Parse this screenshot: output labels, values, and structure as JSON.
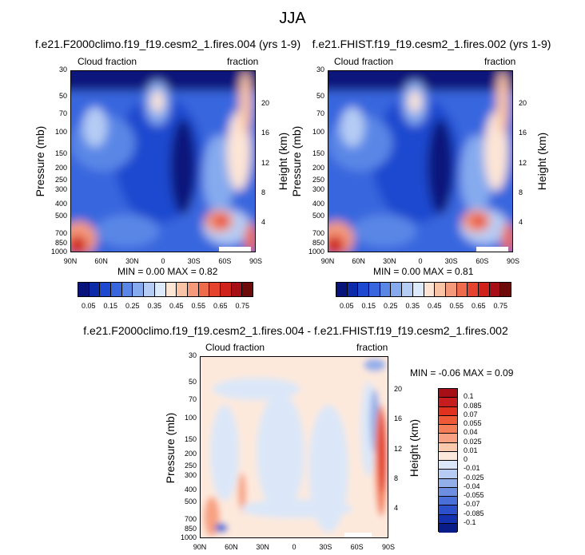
{
  "title": "JJA",
  "panels": {
    "p1": {
      "title": "f.e21.F2000climo.f19_f19.cesm2_1.fires.004 (yrs 1-9)",
      "left_label": "Cloud fraction",
      "right_label": "fraction",
      "ylabel": "Pressure (mb)",
      "y2label": "Height (km)",
      "minmax": "MIN =   0.00   MAX =   0.82"
    },
    "p2": {
      "title": "f.e21.FHIST.f19_f19.cesm2_1.fires.002 (yrs 1-9)",
      "left_label": "Cloud fraction",
      "right_label": "fraction",
      "ylabel": "Pressure (mb)",
      "y2label": "Height (km)",
      "minmax": "MIN =   0.00   MAX =   0.81"
    },
    "p3": {
      "title": "f.e21.F2000climo.f19_f19.cesm2_1.fires.004 - f.e21.FHIST.f19_f19.cesm2_1.fires.002",
      "left_label": "Cloud fraction",
      "right_label": "fraction",
      "ylabel": "Pressure (mb)",
      "y2label": "Height (km)",
      "minmax": "MIN =  -0.06   MAX =   0.09"
    }
  },
  "axes": {
    "lat_ticks": [
      "90N",
      "60N",
      "30N",
      "0",
      "30S",
      "60S",
      "90S"
    ],
    "pressure_ticks": [
      "30",
      "50",
      "70",
      "100",
      "150",
      "200",
      "250",
      "300",
      "400",
      "500",
      "700",
      "850",
      "1000"
    ],
    "pressure_values": [
      30,
      50,
      70,
      100,
      150,
      200,
      250,
      300,
      400,
      500,
      700,
      850,
      1000
    ],
    "height_ticks": [
      "20",
      "16",
      "12",
      "8",
      "4"
    ],
    "height_values": [
      20,
      16,
      12,
      8,
      4
    ]
  },
  "colorbar_main": {
    "labels": [
      "0.05",
      "0.15",
      "0.25",
      "0.35",
      "0.45",
      "0.55",
      "0.65",
      "0.75"
    ],
    "colors": [
      "#08147a",
      "#0b2ba8",
      "#1c49cf",
      "#3766de",
      "#5a87e6",
      "#86aaee",
      "#b5ccf4",
      "#ddeafb",
      "#fde5d6",
      "#f9c3a6",
      "#f49a7a",
      "#ee6c4c",
      "#e5432d",
      "#cf221b",
      "#a50f15",
      "#6d0a0a"
    ]
  },
  "colorbar_diff": {
    "labels": [
      "0.1",
      "0.085",
      "0.07",
      "0.055",
      "0.04",
      "0.025",
      "0.01",
      "0",
      "-0.01",
      "-0.025",
      "-0.04",
      "-0.055",
      "-0.07",
      "-0.085",
      "-0.1"
    ],
    "colors": [
      "#a50f15",
      "#c81d1e",
      "#e0321f",
      "#ee5a35",
      "#f47e58",
      "#f8a283",
      "#fbc9ac",
      "#fde9dc",
      "#dbe7f8",
      "#b7ccf2",
      "#93afea",
      "#6d8fe1",
      "#4b6fd8",
      "#2c4fca",
      "#1432b0",
      "#0a1c88"
    ]
  },
  "chart_data": [
    {
      "type": "heatmap",
      "title": "f.e21.F2000climo.f19_f19.cesm2_1.fires.004 (yrs 1-9)",
      "variable": "Cloud fraction",
      "x_ticks": [
        "90N",
        "60N",
        "30N",
        "0",
        "30S",
        "60S",
        "90S"
      ],
      "ylabel": "Pressure (mb)",
      "y2label": "Height (km)",
      "ylim": [
        1000,
        30
      ],
      "y_scale": "log",
      "min": 0.0,
      "max": 0.82
    },
    {
      "type": "heatmap",
      "title": "f.e21.FHIST.f19_f19.cesm2_1.fires.002 (yrs 1-9)",
      "variable": "Cloud fraction",
      "x_ticks": [
        "90N",
        "60N",
        "30N",
        "0",
        "30S",
        "60S",
        "90S"
      ],
      "ylabel": "Pressure (mb)",
      "y2label": "Height (km)",
      "ylim": [
        1000,
        30
      ],
      "y_scale": "log",
      "min": 0.0,
      "max": 0.81
    },
    {
      "type": "heatmap",
      "title": "f.e21.F2000climo.f19_f19.cesm2_1.fires.004 - f.e21.FHIST.f19_f19.cesm2_1.fires.002",
      "variable": "Cloud fraction",
      "x_ticks": [
        "90N",
        "60N",
        "30N",
        "0",
        "30S",
        "60S",
        "90S"
      ],
      "ylabel": "Pressure (mb)",
      "y2label": "Height (km)",
      "ylim": [
        1000,
        30
      ],
      "y_scale": "log",
      "min": -0.06,
      "max": 0.09
    }
  ]
}
